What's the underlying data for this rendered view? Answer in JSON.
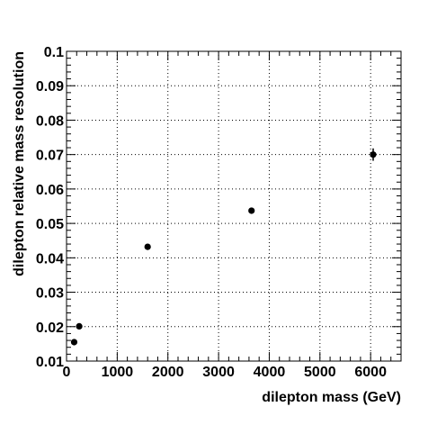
{
  "chart_data": {
    "type": "scatter",
    "title": "",
    "xlabel": "dilepton mass (GeV)",
    "ylabel": "dilepton relative mass resolution",
    "xlim": [
      0,
      6600
    ],
    "ylim": [
      0.01,
      0.1
    ],
    "x_ticks": [
      0,
      1000,
      2000,
      3000,
      4000,
      5000,
      6000
    ],
    "x_tick_labels": [
      "0",
      "1000",
      "2000",
      "3000",
      "4000",
      "5000",
      "6000"
    ],
    "y_ticks": [
      0.01,
      0.02,
      0.03,
      0.04,
      0.05,
      0.06,
      0.07,
      0.08,
      0.09,
      0.1
    ],
    "y_tick_labels": [
      "0.01",
      "0.02",
      "0.03",
      "0.04",
      "0.05",
      "0.06",
      "0.07",
      "0.08",
      "0.09",
      "0.1"
    ],
    "grid": true,
    "marker_color": "#000000",
    "points": [
      {
        "x": 150,
        "y": 0.0155,
        "yerr": 0.0003
      },
      {
        "x": 250,
        "y": 0.0201,
        "yerr": 0.0003
      },
      {
        "x": 1600,
        "y": 0.0432,
        "yerr": 0.0004
      },
      {
        "x": 3650,
        "y": 0.0537,
        "yerr": 0.0008
      },
      {
        "x": 6050,
        "y": 0.07,
        "yerr": 0.0018
      }
    ]
  }
}
